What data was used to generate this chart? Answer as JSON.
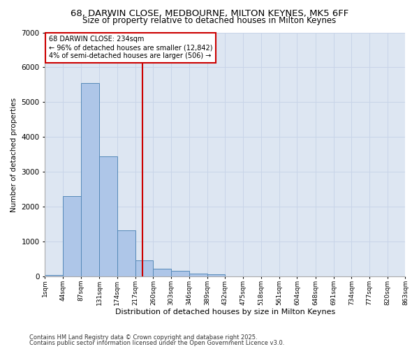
{
  "title_line1": "68, DARWIN CLOSE, MEDBOURNE, MILTON KEYNES, MK5 6FF",
  "title_line2": "Size of property relative to detached houses in Milton Keynes",
  "xlabel": "Distribution of detached houses by size in Milton Keynes",
  "ylabel": "Number of detached properties",
  "footnote1": "Contains HM Land Registry data © Crown copyright and database right 2025.",
  "footnote2": "Contains public sector information licensed under the Open Government Licence v3.0.",
  "annotation_title": "68 DARWIN CLOSE: 234sqm",
  "annotation_line1": "← 96% of detached houses are smaller (12,842)",
  "annotation_line2": "4% of semi-detached houses are larger (506) →",
  "property_size": 234,
  "bin_edges": [
    1,
    44,
    87,
    131,
    174,
    217,
    260,
    303,
    346,
    389,
    432,
    475,
    518,
    561,
    604,
    648,
    691,
    734,
    777,
    820,
    863
  ],
  "bar_heights": [
    50,
    2300,
    5550,
    3450,
    1320,
    470,
    220,
    175,
    80,
    60,
    0,
    0,
    0,
    0,
    0,
    0,
    0,
    0,
    0,
    0
  ],
  "bar_color": "#aec6e8",
  "bar_edge_color": "#5589b8",
  "vline_color": "#cc0000",
  "grid_color": "#c8d4e8",
  "bg_color": "#dde6f2",
  "annotation_box_color": "#cc0000",
  "ylim_max": 7000,
  "title1_fontsize": 9.5,
  "title2_fontsize": 8.5
}
